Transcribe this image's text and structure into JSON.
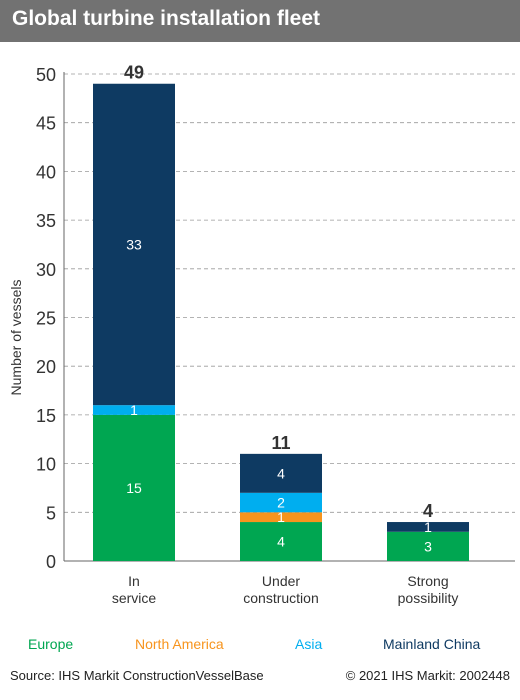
{
  "title": "Global turbine installation fleet",
  "chart_data": {
    "type": "bar",
    "stacked": true,
    "categories": [
      [
        "In",
        "service"
      ],
      [
        "Under",
        "construction"
      ],
      [
        "Strong",
        "possibility"
      ]
    ],
    "series": [
      {
        "name": "Europe",
        "color": "#00A651",
        "values": [
          15,
          4,
          3
        ]
      },
      {
        "name": "North America",
        "color": "#F7941D",
        "values": [
          0,
          1,
          0
        ]
      },
      {
        "name": "Asia",
        "color": "#00AEEF",
        "values": [
          1,
          2,
          0
        ]
      },
      {
        "name": "Mainland China",
        "color": "#0E3A62",
        "values": [
          33,
          4,
          1
        ]
      }
    ],
    "totals": [
      49,
      11,
      4
    ],
    "ylabel": "Number of vessels",
    "ylim": [
      0,
      50
    ],
    "yticks": [
      0,
      5,
      10,
      15,
      20,
      25,
      30,
      35,
      40,
      45,
      50
    ],
    "grid": "dashed horizontal",
    "legend": "bottom"
  },
  "footer": {
    "source": "Source: IHS Markit ConstructionVesselBase",
    "copyright": "© 2021 IHS Markit: 2002448"
  }
}
